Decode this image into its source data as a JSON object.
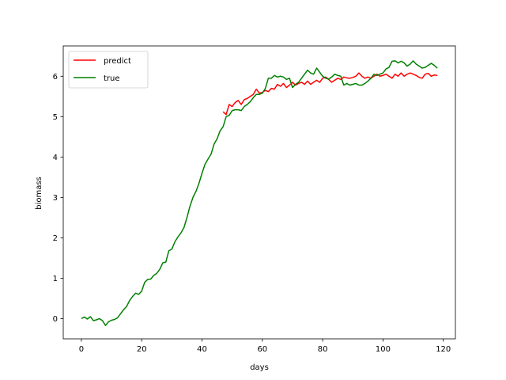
{
  "chart_data": {
    "type": "line",
    "xlabel": "days",
    "ylabel": "biomass",
    "xlim": [
      -6,
      124
    ],
    "ylim": [
      -0.5,
      6.75
    ],
    "xticks": [
      0,
      20,
      40,
      60,
      80,
      100,
      120
    ],
    "yticks": [
      0,
      1,
      2,
      3,
      4,
      5,
      6
    ],
    "grid": false,
    "legend_position": "upper-left",
    "series": [
      {
        "name": "predict",
        "color": "#ff0000",
        "points": [
          [
            47,
            5.12
          ],
          [
            48,
            5.05
          ],
          [
            49,
            5.3
          ],
          [
            50,
            5.25
          ],
          [
            51,
            5.35
          ],
          [
            52,
            5.4
          ],
          [
            53,
            5.3
          ],
          [
            54,
            5.42
          ],
          [
            55,
            5.45
          ],
          [
            56,
            5.5
          ],
          [
            57,
            5.55
          ],
          [
            58,
            5.68
          ],
          [
            59,
            5.58
          ],
          [
            60,
            5.6
          ],
          [
            61,
            5.65
          ],
          [
            62,
            5.62
          ],
          [
            63,
            5.7
          ],
          [
            64,
            5.68
          ],
          [
            65,
            5.8
          ],
          [
            66,
            5.75
          ],
          [
            67,
            5.82
          ],
          [
            68,
            5.72
          ],
          [
            69,
            5.78
          ],
          [
            70,
            5.85
          ],
          [
            71,
            5.78
          ],
          [
            72,
            5.82
          ],
          [
            73,
            5.85
          ],
          [
            74,
            5.8
          ],
          [
            75,
            5.88
          ],
          [
            76,
            5.8
          ],
          [
            77,
            5.85
          ],
          [
            78,
            5.9
          ],
          [
            79,
            5.85
          ],
          [
            80,
            5.95
          ],
          [
            81,
            5.98
          ],
          [
            82,
            5.92
          ],
          [
            83,
            5.85
          ],
          [
            84,
            5.9
          ],
          [
            85,
            5.95
          ],
          [
            86,
            5.92
          ],
          [
            87,
            5.98
          ],
          [
            88,
            5.96
          ],
          [
            89,
            5.95
          ],
          [
            90,
            5.97
          ],
          [
            91,
            6.0
          ],
          [
            92,
            6.08
          ],
          [
            93,
            6.0
          ],
          [
            94,
            5.95
          ],
          [
            95,
            5.98
          ],
          [
            96,
            5.95
          ],
          [
            97,
            6.0
          ],
          [
            98,
            6.05
          ],
          [
            99,
            6.0
          ],
          [
            100,
            6.02
          ],
          [
            101,
            6.05
          ],
          [
            102,
            6.0
          ],
          [
            103,
            5.95
          ],
          [
            104,
            6.05
          ],
          [
            105,
            6.0
          ],
          [
            106,
            6.08
          ],
          [
            107,
            6.0
          ],
          [
            108,
            6.05
          ],
          [
            109,
            6.08
          ],
          [
            110,
            6.05
          ],
          [
            111,
            6.02
          ],
          [
            112,
            5.97
          ],
          [
            113,
            5.95
          ],
          [
            114,
            6.05
          ],
          [
            115,
            6.07
          ],
          [
            116,
            6.0
          ],
          [
            117,
            6.03
          ],
          [
            118,
            6.02
          ]
        ]
      },
      {
        "name": "true",
        "color": "#008000",
        "points": [
          [
            0,
            0.0
          ],
          [
            1,
            0.04
          ],
          [
            2,
            -0.01
          ],
          [
            3,
            0.05
          ],
          [
            4,
            -0.05
          ],
          [
            5,
            -0.03
          ],
          [
            6,
            0.0
          ],
          [
            7,
            -0.05
          ],
          [
            8,
            -0.17
          ],
          [
            9,
            -0.08
          ],
          [
            10,
            -0.04
          ],
          [
            11,
            -0.02
          ],
          [
            12,
            0.02
          ],
          [
            13,
            0.12
          ],
          [
            14,
            0.22
          ],
          [
            15,
            0.3
          ],
          [
            16,
            0.45
          ],
          [
            17,
            0.55
          ],
          [
            18,
            0.63
          ],
          [
            19,
            0.6
          ],
          [
            20,
            0.68
          ],
          [
            21,
            0.9
          ],
          [
            22,
            0.97
          ],
          [
            23,
            0.98
          ],
          [
            24,
            1.07
          ],
          [
            25,
            1.12
          ],
          [
            26,
            1.22
          ],
          [
            27,
            1.38
          ],
          [
            28,
            1.4
          ],
          [
            29,
            1.68
          ],
          [
            30,
            1.72
          ],
          [
            31,
            1.9
          ],
          [
            32,
            2.02
          ],
          [
            33,
            2.12
          ],
          [
            34,
            2.25
          ],
          [
            35,
            2.5
          ],
          [
            36,
            2.78
          ],
          [
            37,
            3.0
          ],
          [
            38,
            3.15
          ],
          [
            39,
            3.35
          ],
          [
            40,
            3.6
          ],
          [
            41,
            3.82
          ],
          [
            42,
            3.95
          ],
          [
            43,
            4.07
          ],
          [
            44,
            4.32
          ],
          [
            45,
            4.45
          ],
          [
            46,
            4.65
          ],
          [
            47,
            4.75
          ],
          [
            48,
            5.0
          ],
          [
            49,
            5.03
          ],
          [
            50,
            5.15
          ],
          [
            51,
            5.17
          ],
          [
            52,
            5.17
          ],
          [
            53,
            5.15
          ],
          [
            54,
            5.25
          ],
          [
            55,
            5.3
          ],
          [
            56,
            5.37
          ],
          [
            57,
            5.47
          ],
          [
            58,
            5.55
          ],
          [
            59,
            5.55
          ],
          [
            60,
            5.58
          ],
          [
            61,
            5.7
          ],
          [
            62,
            5.95
          ],
          [
            63,
            5.95
          ],
          [
            64,
            6.02
          ],
          [
            65,
            5.98
          ],
          [
            66,
            6.0
          ],
          [
            67,
            5.98
          ],
          [
            68,
            5.92
          ],
          [
            69,
            5.95
          ],
          [
            70,
            5.72
          ],
          [
            71,
            5.8
          ],
          [
            72,
            5.85
          ],
          [
            73,
            5.95
          ],
          [
            74,
            6.05
          ],
          [
            75,
            6.15
          ],
          [
            76,
            6.08
          ],
          [
            77,
            6.05
          ],
          [
            78,
            6.2
          ],
          [
            79,
            6.1
          ],
          [
            80,
            6.0
          ],
          [
            81,
            5.95
          ],
          [
            82,
            5.93
          ],
          [
            83,
            5.98
          ],
          [
            84,
            6.05
          ],
          [
            85,
            6.02
          ],
          [
            86,
            6.0
          ],
          [
            87,
            5.78
          ],
          [
            88,
            5.82
          ],
          [
            89,
            5.78
          ],
          [
            90,
            5.8
          ],
          [
            91,
            5.82
          ],
          [
            92,
            5.78
          ],
          [
            93,
            5.78
          ],
          [
            94,
            5.82
          ],
          [
            95,
            5.88
          ],
          [
            96,
            5.95
          ],
          [
            97,
            6.05
          ],
          [
            98,
            6.02
          ],
          [
            99,
            6.05
          ],
          [
            100,
            6.08
          ],
          [
            101,
            6.18
          ],
          [
            102,
            6.22
          ],
          [
            103,
            6.37
          ],
          [
            104,
            6.38
          ],
          [
            105,
            6.33
          ],
          [
            106,
            6.37
          ],
          [
            107,
            6.33
          ],
          [
            108,
            6.25
          ],
          [
            109,
            6.3
          ],
          [
            110,
            6.38
          ],
          [
            111,
            6.3
          ],
          [
            112,
            6.25
          ],
          [
            113,
            6.2
          ],
          [
            114,
            6.22
          ],
          [
            115,
            6.27
          ],
          [
            116,
            6.32
          ],
          [
            117,
            6.27
          ],
          [
            118,
            6.2
          ]
        ]
      }
    ]
  }
}
